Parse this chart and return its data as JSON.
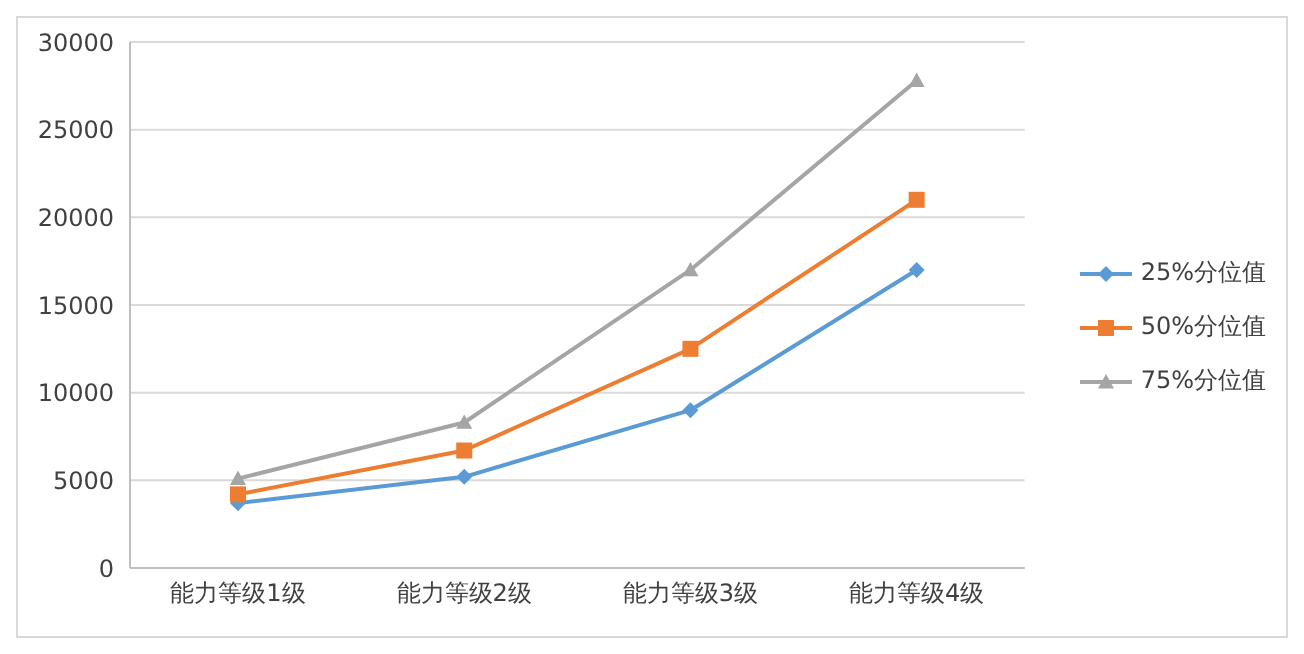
{
  "chart_data": {
    "type": "line",
    "categories": [
      "能力等级1级",
      "能力等级2级",
      "能力等级3级",
      "能力等级4级"
    ],
    "series": [
      {
        "name": "25%分位值",
        "color": "#5b9bd5",
        "marker": "diamond",
        "values": [
          3700,
          5200,
          9000,
          17000
        ]
      },
      {
        "name": "50%分位值",
        "color": "#ed7d31",
        "marker": "square",
        "values": [
          4200,
          6700,
          12500,
          21000
        ]
      },
      {
        "name": "75%分位值",
        "color": "#a5a5a5",
        "marker": "triangle",
        "values": [
          5100,
          8300,
          17000,
          27800
        ]
      }
    ],
    "ylim": [
      0,
      30000
    ],
    "yticks": [
      0,
      5000,
      10000,
      15000,
      20000,
      25000,
      30000
    ],
    "grid": "y",
    "legend": "right",
    "line_style": "solid"
  }
}
